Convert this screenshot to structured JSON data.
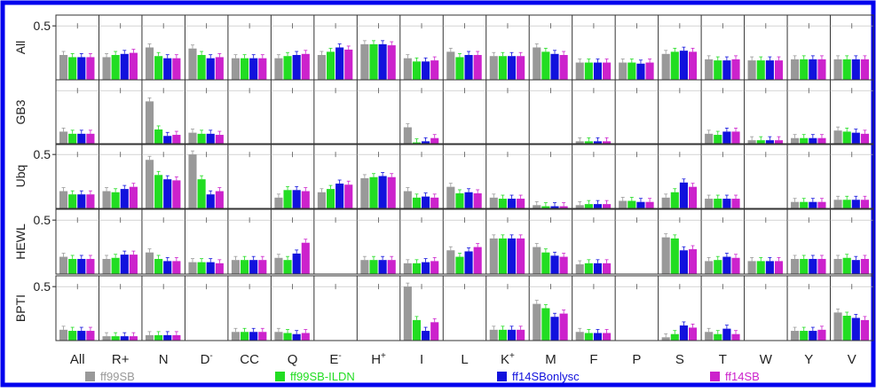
{
  "chart_data": {
    "type": "bar",
    "categories": [
      "All",
      "R+",
      "N",
      "D-",
      "CC",
      "Q",
      "E-",
      "H+",
      "I",
      "L",
      "K+",
      "M",
      "F",
      "P",
      "S",
      "T",
      "W",
      "Y",
      "V"
    ],
    "category_labels": [
      {
        "base": "All",
        "sup": ""
      },
      {
        "base": "R+",
        "sup": ""
      },
      {
        "base": "N",
        "sup": ""
      },
      {
        "base": "D",
        "sup": "-"
      },
      {
        "base": "CC",
        "sup": ""
      },
      {
        "base": "Q",
        "sup": ""
      },
      {
        "base": "E",
        "sup": "-"
      },
      {
        "base": "H",
        "sup": "+"
      },
      {
        "base": "I",
        "sup": ""
      },
      {
        "base": "L",
        "sup": ""
      },
      {
        "base": "K",
        "sup": "+"
      },
      {
        "base": "M",
        "sup": ""
      },
      {
        "base": "F",
        "sup": ""
      },
      {
        "base": "P",
        "sup": ""
      },
      {
        "base": "S",
        "sup": ""
      },
      {
        "base": "T",
        "sup": ""
      },
      {
        "base": "W",
        "sup": ""
      },
      {
        "base": "Y",
        "sup": ""
      },
      {
        "base": "V",
        "sup": ""
      }
    ],
    "series_names": [
      "ff99SB",
      "ff99SB-ILDN",
      "ff14SBonlysc",
      "ff14SB"
    ],
    "series_colors": [
      "#999999",
      "#22dd22",
      "#1111dd",
      "#cc22cc"
    ],
    "legend_position": "bottom",
    "ylim": [
      0,
      0.6
    ],
    "ytick": "0.5",
    "border_color": "#0000ee",
    "panels": [
      {
        "label": "All",
        "show_ytick": true,
        "values": [
          [
            0.23,
            0.21,
            0.21,
            0.21
          ],
          [
            0.21,
            0.23,
            0.24,
            0.25
          ],
          [
            0.3,
            0.22,
            0.2,
            0.2
          ],
          [
            0.29,
            0.23,
            0.2,
            0.21
          ],
          [
            0.2,
            0.2,
            0.2,
            0.2
          ],
          [
            0.2,
            0.22,
            0.23,
            0.24
          ],
          [
            0.23,
            0.26,
            0.3,
            0.28
          ],
          [
            0.33,
            0.33,
            0.33,
            0.32
          ],
          [
            0.2,
            0.17,
            0.17,
            0.18
          ],
          [
            0.26,
            0.21,
            0.23,
            0.23
          ],
          [
            0.22,
            0.22,
            0.22,
            0.22
          ],
          [
            0.3,
            0.26,
            0.24,
            0.23
          ],
          [
            0.16,
            0.16,
            0.16,
            0.16
          ],
          [
            0.16,
            0.16,
            0.15,
            0.16
          ],
          [
            0.24,
            0.26,
            0.27,
            0.26
          ],
          [
            0.19,
            0.18,
            0.18,
            0.19
          ],
          [
            0.18,
            0.18,
            0.18,
            0.18
          ],
          [
            0.19,
            0.19,
            0.19,
            0.19
          ],
          [
            0.19,
            0.19,
            0.19,
            0.19
          ]
        ]
      },
      {
        "label": "GB3",
        "show_ytick": false,
        "values": [
          [
            0.12,
            0.1,
            0.1,
            0.1
          ],
          null,
          [
            0.4,
            0.14,
            0.08,
            0.09
          ],
          [
            0.11,
            0.1,
            0.1,
            0.09
          ],
          null,
          null,
          null,
          null,
          [
            0.16,
            0.02,
            0.03,
            0.06
          ],
          null,
          null,
          null,
          [
            0.03,
            0.03,
            0.03,
            0.03
          ],
          null,
          null,
          [
            0.1,
            0.09,
            0.12,
            0.12
          ],
          [
            0.04,
            0.04,
            0.04,
            0.04
          ],
          [
            0.06,
            0.06,
            0.06,
            0.06
          ],
          [
            0.13,
            0.12,
            0.11,
            0.1
          ]
        ]
      },
      {
        "label": "Ubq",
        "show_ytick": true,
        "values": [
          [
            0.16,
            0.13,
            0.13,
            0.13
          ],
          [
            0.16,
            0.15,
            0.18,
            0.2
          ],
          [
            0.45,
            0.31,
            0.27,
            0.26
          ],
          [
            0.5,
            0.27,
            0.13,
            0.16
          ],
          null,
          [
            0.1,
            0.17,
            0.17,
            0.16
          ],
          [
            0.15,
            0.18,
            0.23,
            0.22
          ],
          [
            0.28,
            0.29,
            0.3,
            0.29
          ],
          [
            0.16,
            0.1,
            0.11,
            0.1
          ],
          [
            0.2,
            0.14,
            0.15,
            0.14
          ],
          [
            0.1,
            0.09,
            0.09,
            0.09
          ],
          [
            0.03,
            0.02,
            0.02,
            0.02
          ],
          [
            0.03,
            0.04,
            0.04,
            0.04
          ],
          [
            0.07,
            0.07,
            0.06,
            0.06
          ],
          [
            0.1,
            0.15,
            0.24,
            0.2
          ],
          [
            0.09,
            0.09,
            0.09,
            0.09
          ],
          null,
          [
            0.06,
            0.06,
            0.06,
            0.06
          ],
          [
            0.08,
            0.08,
            0.08,
            0.08
          ]
        ]
      },
      {
        "label": "HEWL",
        "show_ytick": true,
        "values": [
          [
            0.16,
            0.14,
            0.14,
            0.14
          ],
          [
            0.14,
            0.15,
            0.18,
            0.18
          ],
          [
            0.2,
            0.14,
            0.12,
            0.12
          ],
          [
            0.11,
            0.11,
            0.11,
            0.1
          ],
          [
            0.13,
            0.13,
            0.13,
            0.13
          ],
          [
            0.15,
            0.13,
            0.19,
            0.29
          ],
          null,
          [
            0.13,
            0.13,
            0.13,
            0.13
          ],
          [
            0.1,
            0.1,
            0.11,
            0.12
          ],
          [
            0.22,
            0.16,
            0.21,
            0.25
          ],
          [
            0.33,
            0.33,
            0.33,
            0.33
          ],
          [
            0.25,
            0.2,
            0.17,
            0.16
          ],
          [
            0.09,
            0.1,
            0.1,
            0.1
          ],
          null,
          [
            0.34,
            0.33,
            0.22,
            0.23
          ],
          [
            0.12,
            0.13,
            0.16,
            0.15
          ],
          [
            0.12,
            0.12,
            0.12,
            0.12
          ],
          [
            0.14,
            0.14,
            0.14,
            0.14
          ],
          [
            0.14,
            0.15,
            0.13,
            0.14
          ]
        ]
      },
      {
        "label": "BPTI",
        "show_ytick": true,
        "values": [
          [
            0.1,
            0.09,
            0.09,
            0.09
          ],
          [
            0.04,
            0.04,
            0.04,
            0.04
          ],
          [
            0.05,
            0.05,
            0.05,
            0.05
          ],
          null,
          [
            0.08,
            0.08,
            0.08,
            0.08
          ],
          [
            0.08,
            0.07,
            0.06,
            0.07
          ],
          null,
          null,
          [
            0.5,
            0.19,
            0.09,
            0.17
          ],
          null,
          [
            0.1,
            0.1,
            0.1,
            0.1
          ],
          [
            0.34,
            0.3,
            0.22,
            0.25
          ],
          [
            0.08,
            0.07,
            0.07,
            0.07
          ],
          null,
          [
            0.03,
            0.06,
            0.14,
            0.12
          ],
          [
            0.08,
            0.06,
            0.11,
            0.06
          ],
          null,
          [
            0.09,
            0.09,
            0.09,
            0.1
          ],
          [
            0.26,
            0.23,
            0.21,
            0.19
          ]
        ]
      }
    ]
  }
}
